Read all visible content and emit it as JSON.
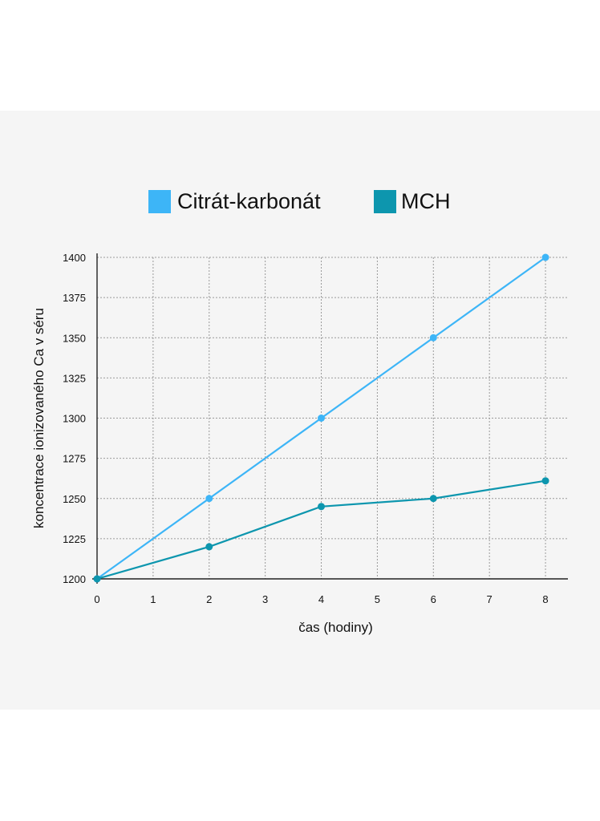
{
  "chart_data": {
    "type": "line",
    "title": "",
    "xlabel": "čas (hodiny)",
    "ylabel": "koncentrace ionizovaného Ca v séru",
    "xlim": [
      0,
      8.4
    ],
    "ylim": [
      1200,
      1400
    ],
    "x_ticks": [
      "0",
      "1",
      "2",
      "3",
      "4",
      "5",
      "6",
      "7",
      "8"
    ],
    "y_ticks": [
      "1200",
      "1225",
      "1250",
      "1275",
      "1300",
      "1325",
      "1350",
      "1375",
      "1400"
    ],
    "grid": true,
    "legend_position": "top-center",
    "series": [
      {
        "name": "Citrát-karbonát",
        "color": "#3db5f7",
        "x": [
          0,
          2,
          4,
          6,
          8
        ],
        "y": [
          1200,
          1250,
          1300,
          1350,
          1400
        ]
      },
      {
        "name": "MCH",
        "color": "#0d96ae",
        "x": [
          0,
          2,
          4,
          6,
          8
        ],
        "y": [
          1200,
          1220,
          1245,
          1250,
          1261
        ]
      }
    ]
  }
}
